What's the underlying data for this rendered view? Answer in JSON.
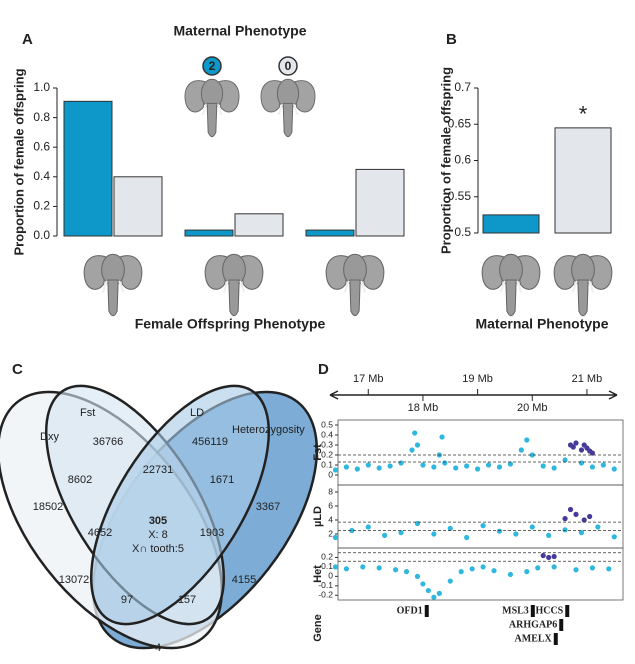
{
  "chart_data": [
    {
      "type": "bar",
      "label": "A",
      "title": "Maternal Phenotype",
      "xlabel": "Female Offspring Phenotype",
      "ylabel": "Proportion of female offspring",
      "categories": [
        null,
        null,
        null
      ],
      "series": [
        {
          "name": "2",
          "color": "#0e97c9",
          "values": [
            0.91,
            0.04,
            0.04
          ]
        },
        {
          "name": "0",
          "color": "#e3e7eb",
          "values": [
            0.4,
            0.15,
            0.45
          ]
        }
      ],
      "ylim": [
        0,
        1
      ],
      "yticks": [
        {
          "value": 0,
          "label": "0.0"
        },
        0.2,
        0.4,
        0.6,
        0.8,
        {
          "value": 1,
          "label": "1.0"
        }
      ]
    },
    {
      "type": "bar",
      "label": "B",
      "xlabel": "Maternal Phenotype",
      "ylabel": "Proportion of female offspring",
      "categories": [
        null,
        null
      ],
      "values": [
        0.525,
        0.645
      ],
      "colors": [
        "#0e97c9",
        "#e3e7eb"
      ],
      "annotation": "*",
      "ylim": [
        0.5,
        0.7
      ],
      "yticks": [
        0.5,
        0.55,
        0.6,
        0.65,
        0.7
      ]
    },
    {
      "type": "venn",
      "label": "C",
      "sets": [
        "Dxy",
        "Fst",
        "LD",
        "Heterozygosity"
      ],
      "colors": [
        "#eef1f5",
        "#d4e5f2",
        "#a7c9e6",
        "#6fa4d2"
      ],
      "regions": [
        18502,
        36766,
        456119,
        3367,
        8602,
        22731,
        1671,
        4652,
        1903,
        305,
        13072,
        4155,
        97,
        157,
        4
      ],
      "center_notes": [
        "X: 8",
        "X∩ tooth:5"
      ]
    },
    {
      "type": "genome_scan",
      "label": "D",
      "xlim": [
        16.3,
        21.55
      ],
      "xticks": [
        {
          "value": 17,
          "label": "17 Mb"
        },
        {
          "value": 18,
          "label": "18 Mb"
        },
        {
          "value": 19,
          "label": "19 Mb"
        },
        {
          "value": 20,
          "label": "20 Mb"
        },
        {
          "value": 21,
          "label": "21 Mb"
        }
      ],
      "tracks": [
        {
          "name": "Fst",
          "ylim": [
            -0.1,
            0.55
          ],
          "yticks": [
            0,
            0.1,
            0.2,
            0.3,
            0.4,
            0.5
          ],
          "thresholds": [
            0.13,
            0.2
          ],
          "series": [
            {
              "color": "#2fb7de",
              "x": [
                16.4,
                16.6,
                16.8,
                17.0,
                17.2,
                17.4,
                17.6,
                17.8,
                17.85,
                17.9,
                18.0,
                18.2,
                18.3,
                18.35,
                18.4,
                18.6,
                18.8,
                19.0,
                19.2,
                19.4,
                19.6,
                19.8,
                19.9,
                20.0,
                20.2,
                20.4,
                20.6,
                20.9,
                21.1,
                21.3,
                21.5
              ],
              "values": [
                0.05,
                0.08,
                0.06,
                0.1,
                0.07,
                0.09,
                0.12,
                0.25,
                0.42,
                0.3,
                0.1,
                0.08,
                0.2,
                0.38,
                0.12,
                0.07,
                0.09,
                0.06,
                0.1,
                0.08,
                0.11,
                0.25,
                0.35,
                0.2,
                0.09,
                0.07,
                0.15,
                0.12,
                0.08,
                0.1,
                0.06
              ]
            },
            {
              "color": "#463a9a",
              "x": [
                20.7,
                20.75,
                20.8,
                20.9,
                20.95,
                21.0,
                21.05,
                21.1
              ],
              "values": [
                0.3,
                0.28,
                0.32,
                0.25,
                0.3,
                0.27,
                0.24,
                0.22
              ]
            }
          ]
        },
        {
          "name": "µLD",
          "ylim": [
            0,
            9
          ],
          "yticks": [
            2,
            4,
            6,
            8
          ],
          "thresholds": [
            2.5,
            3.7
          ],
          "series": [
            {
              "color": "#2fb7de",
              "x": [
                16.4,
                16.7,
                17.0,
                17.3,
                17.6,
                17.9,
                18.2,
                18.5,
                18.8,
                19.1,
                19.4,
                19.7,
                20.0,
                20.3,
                20.6,
                20.9,
                21.2,
                21.5
              ],
              "values": [
                1.5,
                2.5,
                3.0,
                1.8,
                2.2,
                3.5,
                2.0,
                2.8,
                1.5,
                3.2,
                2.4,
                2.0,
                3.0,
                1.8,
                2.6,
                2.2,
                3.0,
                1.6
              ]
            },
            {
              "color": "#463a9a",
              "x": [
                20.6,
                20.7,
                20.8,
                20.95,
                21.05
              ],
              "values": [
                4.2,
                5.5,
                4.8,
                4.0,
                4.5
              ]
            }
          ]
        },
        {
          "name": "Het",
          "ylim": [
            -0.25,
            0.3
          ],
          "yticks": [
            -0.2,
            -0.1,
            0,
            0.1,
            0.2
          ],
          "thresholds": [
            0.16,
            0.25
          ],
          "series": [
            {
              "color": "#2fb7de",
              "x": [
                16.4,
                16.6,
                16.9,
                17.2,
                17.5,
                17.7,
                17.9,
                18.0,
                18.1,
                18.2,
                18.3,
                18.5,
                18.7,
                18.9,
                19.1,
                19.3,
                19.6,
                19.9,
                20.1,
                20.4,
                20.8,
                21.1,
                21.4
              ],
              "values": [
                0.1,
                0.08,
                0.1,
                0.09,
                0.07,
                0.05,
                0.0,
                -0.08,
                -0.15,
                -0.22,
                -0.18,
                -0.05,
                0.05,
                0.08,
                0.1,
                0.06,
                0.02,
                0.05,
                0.09,
                0.1,
                0.07,
                0.09,
                0.08
              ]
            },
            {
              "color": "#463a9a",
              "x": [
                20.2,
                20.3,
                20.4
              ],
              "values": [
                0.22,
                0.2,
                0.21
              ]
            }
          ]
        }
      ],
      "gene_track": "Gene",
      "genes": [
        {
          "name": "OFD1",
          "x": 18.07
        },
        {
          "name": "MSL3",
          "x": 20.01
        },
        {
          "name": "HCCS",
          "x": 20.64
        },
        {
          "name": "ARHGAP6",
          "x": 20.53
        },
        {
          "name": "AMELX",
          "x": 20.43
        }
      ]
    }
  ]
}
